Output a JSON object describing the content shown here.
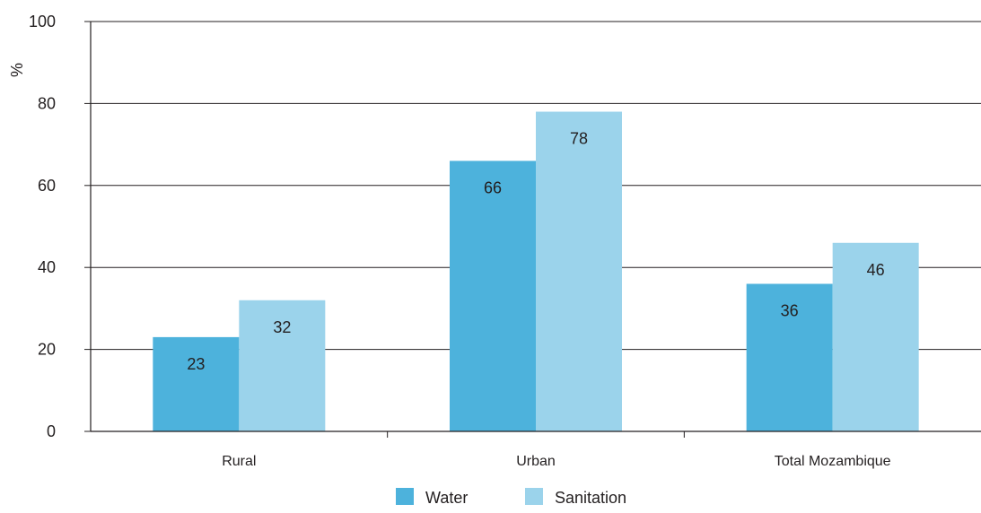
{
  "chart_data": {
    "type": "bar",
    "title": "",
    "xlabel": "",
    "ylabel": "%",
    "ylim": [
      0,
      100
    ],
    "yticks": [
      0,
      20,
      40,
      60,
      80,
      100
    ],
    "grid": true,
    "legend_position": "bottom",
    "categories": [
      "Rural",
      "Urban",
      "Total Mozambique"
    ],
    "series": [
      {
        "name": "Water",
        "color": "#4db2dc",
        "values": [
          23,
          66,
          36
        ]
      },
      {
        "name": "Sanitation",
        "color": "#9bd3eb",
        "values": [
          32,
          78,
          46
        ]
      }
    ]
  }
}
